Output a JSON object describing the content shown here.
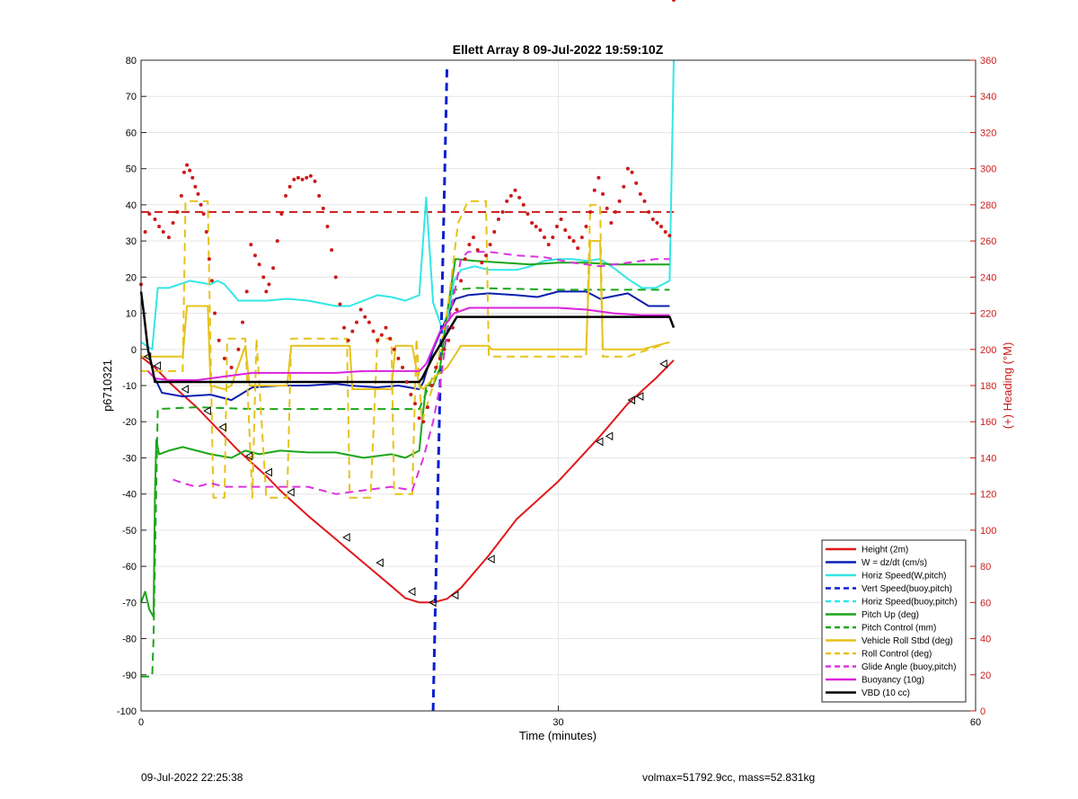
{
  "chart_data": {
    "type": "line",
    "title": "Ellett Array 8 09-Jul-2022 19:59:10Z",
    "xlabel": "Time (minutes)",
    "ylabel": "p6710321",
    "y2label": "(+) Heading (°M)",
    "xlim": [
      0,
      60
    ],
    "ylim": [
      -100,
      80
    ],
    "y2lim": [
      0,
      360
    ],
    "xticks": [
      "0",
      "30",
      "60"
    ],
    "yticks": [
      "-100",
      "-90",
      "-80",
      "-70",
      "-60",
      "-50",
      "-40",
      "-30",
      "-20",
      "-10",
      "0",
      "10",
      "20",
      "30",
      "40",
      "50",
      "60",
      "70",
      "80"
    ],
    "y2ticks": [
      "0",
      "20",
      "40",
      "60",
      "80",
      "100",
      "120",
      "140",
      "160",
      "180",
      "200",
      "220",
      "240",
      "260",
      "280",
      "300",
      "320",
      "340",
      "360"
    ],
    "grid": true,
    "legend_position": "bottom-right",
    "colors": {
      "height": "#e0191c",
      "w": "#0a1fb0",
      "horiz": "#33e6e6",
      "vert_buoy": "#0a1fd0",
      "pitch": "#1aa61a",
      "roll": "#e6c21a",
      "glide": "#dd33dd",
      "buoyancy": "#dd22dd",
      "vbd": "#000000",
      "heading": "#cc1a1a"
    },
    "series": [
      {
        "name": "Height (2m)",
        "color": "#e0191c",
        "dash": false,
        "width": 2,
        "x": [
          0,
          1,
          2,
          3,
          4,
          5,
          6,
          7,
          8,
          9,
          10,
          12,
          14,
          16,
          18,
          19,
          20,
          21,
          22,
          23,
          25,
          27,
          30,
          33,
          35,
          37,
          38.3
        ],
        "y": [
          -2,
          -5,
          -9,
          -12.5,
          -16,
          -20,
          -24,
          -28,
          -31.5,
          -35,
          -39,
          -46,
          -52.5,
          -59,
          -65.5,
          -68.8,
          -70,
          -70,
          -69,
          -66,
          -57,
          -47,
          -36.5,
          -24,
          -15,
          -8,
          -3
        ]
      },
      {
        "name": "W = dz/dt (cm/s)",
        "color": "#0a1fb0",
        "dash": false,
        "width": 2,
        "x": [
          1,
          1.5,
          3,
          5,
          6.5,
          8,
          10,
          12,
          14,
          15,
          17,
          18.5,
          20,
          20.3,
          21,
          22,
          22.6,
          23.5,
          25,
          27,
          28.5,
          30,
          32,
          33,
          35,
          36.5,
          38
        ],
        "y": [
          -8,
          -12,
          -13,
          -12.5,
          -14,
          -10.5,
          -10,
          -10,
          -9.5,
          -10,
          -10.5,
          -10,
          -11,
          -9,
          0,
          9,
          14,
          15,
          15.5,
          15,
          14.5,
          16,
          16,
          14,
          15.5,
          12,
          12
        ]
      },
      {
        "name": "Horiz Speed(W,pitch)",
        "color": "#33e6e6",
        "dash": false,
        "width": 2,
        "x": [
          0,
          0.8,
          1.2,
          2,
          3.5,
          5,
          5.5,
          6,
          7,
          9,
          10.5,
          12,
          14,
          15,
          16,
          17,
          18,
          19,
          20,
          20.5,
          21,
          21.8,
          22.5,
          23,
          24,
          25,
          27,
          28,
          29,
          30,
          31,
          32,
          33,
          34,
          35,
          36,
          37,
          38,
          38.2,
          38.3
        ],
        "y": [
          2,
          0,
          17,
          17,
          19,
          18,
          19,
          18,
          13.5,
          13.5,
          14,
          13.5,
          12,
          12,
          13.5,
          15,
          14.5,
          13.5,
          15,
          42,
          13,
          4,
          19,
          22,
          23,
          22,
          22,
          23,
          24.5,
          25,
          25,
          24.5,
          25,
          22.5,
          19.5,
          17,
          17,
          19,
          60,
          80
        ]
      },
      {
        "name": "Vert Speed(buoy,pitch)",
        "color": "#0a1fd0",
        "dash": true,
        "width": 3,
        "x": [
          21,
          21.5,
          22
        ],
        "y": [
          -100,
          -10,
          78
        ]
      },
      {
        "name": "Horiz Speed(buoy,pitch)",
        "color": "#33e6e6",
        "dash": true,
        "width": 2,
        "x": [],
        "y": []
      },
      {
        "name": "Pitch Up (deg)",
        "color": "#1aa61a",
        "dash": false,
        "width": 2,
        "x": [
          0,
          0.3,
          0.6,
          0.9,
          1,
          1.1,
          1.3,
          2,
          3,
          5,
          6.5,
          7.5,
          8.5,
          10,
          12,
          14,
          16,
          18,
          19,
          20,
          20.2,
          20.5,
          21,
          21.5,
          22,
          22.6,
          24,
          26,
          28,
          30,
          32,
          34,
          36,
          38
        ],
        "y": [
          -70,
          -67,
          -72,
          -74,
          -40,
          -25,
          -29,
          -28,
          -27,
          -29,
          -30,
          -28,
          -29,
          -28,
          -28.5,
          -28.5,
          -30,
          -29,
          -30,
          -28,
          -20,
          -10,
          -10,
          -5,
          10,
          25,
          24.5,
          24,
          23.5,
          24,
          24,
          23.5,
          23.5,
          23.5
        ]
      },
      {
        "name": "Pitch Control (mm)",
        "color": "#1aa61a",
        "dash": true,
        "width": 2,
        "x": [
          0,
          0.8,
          0.9,
          1.2,
          4,
          8,
          12,
          16,
          20,
          20.5,
          21.8,
          22.5,
          24,
          30,
          38
        ],
        "y": [
          -90.5,
          -90.5,
          -80,
          -16.5,
          -16,
          -16.5,
          -16.5,
          -16.5,
          -16.5,
          -12,
          0,
          16.5,
          17,
          16.5,
          16.5
        ]
      },
      {
        "name": "Vehicle Roll Stbd (deg)",
        "color": "#e6c21a",
        "dash": false,
        "width": 2,
        "x": [
          0,
          1,
          2,
          3,
          3.3,
          4.8,
          5,
          6,
          6.5,
          7.5,
          7.8,
          8.5,
          10.5,
          10.8,
          12,
          13.5,
          15,
          15.2,
          16,
          17,
          18,
          18.3,
          19.5,
          20,
          20.3,
          21,
          22,
          23,
          24.5,
          25,
          25.2,
          27,
          30,
          32,
          32.3,
          33,
          33.2,
          36,
          38
        ],
        "y": [
          -2,
          -2,
          -2,
          -2,
          12,
          12,
          -10,
          -11,
          -10,
          1,
          -10,
          -10,
          -10,
          1,
          1,
          1,
          1,
          -11,
          -11,
          -11,
          -11,
          1,
          1,
          -10,
          -11,
          -8,
          -5,
          1,
          1,
          1,
          0,
          0,
          0,
          0,
          30,
          30,
          0,
          0,
          2
        ]
      },
      {
        "name": "Roll Control (deg)",
        "color": "#e6c21a",
        "dash": true,
        "width": 2,
        "x": [
          0,
          1,
          2,
          3,
          3.2,
          4.8,
          5.2,
          6,
          6.2,
          7.5,
          8,
          8.3,
          9,
          10.5,
          10.8,
          12,
          14.8,
          15,
          16.5,
          17,
          18,
          18.2,
          19.5,
          19.8,
          20.2,
          21,
          22,
          22.8,
          23.5,
          24.8,
          25,
          26,
          30,
          32,
          32.3,
          33,
          33.2,
          35,
          38
        ],
        "y": [
          -6,
          -6,
          -6,
          -6,
          41,
          41,
          -41,
          -41,
          3,
          3,
          -41,
          3,
          -41,
          -41,
          3,
          3,
          3,
          -41,
          -41,
          3,
          3,
          -40,
          -40,
          3,
          -20,
          -10,
          10,
          35,
          41,
          41,
          -2,
          -2,
          -2,
          -2,
          40,
          40,
          -2,
          -2,
          2
        ]
      },
      {
        "name": "Glide Angle (buoy,pitch)",
        "color": "#dd33dd",
        "dash": true,
        "width": 2,
        "x": [
          2.3,
          3,
          4,
          5,
          6,
          8,
          10,
          12,
          14,
          16,
          18,
          19.5,
          20.3,
          21,
          21.5,
          22,
          22.5,
          23,
          23.5,
          25,
          27,
          29,
          31,
          33,
          35,
          37,
          38
        ],
        "y": [
          -36,
          -37,
          -38,
          -37,
          -38,
          -38,
          -38,
          -38,
          -40,
          -39,
          -38,
          -39,
          -30,
          -20,
          -10,
          5,
          15,
          25,
          27,
          27,
          26,
          25.5,
          24,
          23,
          24,
          25,
          25
        ]
      },
      {
        "name": "Buoyancy (10g)",
        "color": "#dd22dd",
        "dash": false,
        "width": 2,
        "x": [
          0.5,
          1,
          2,
          3,
          4,
          5,
          6,
          7,
          8,
          10,
          12,
          14,
          16,
          18,
          19,
          20,
          20.5,
          21.5,
          22.5,
          23.6,
          25,
          30,
          32,
          34,
          36,
          38
        ],
        "y": [
          -6,
          -8,
          -8.5,
          -8.5,
          -8.5,
          -8,
          -7.5,
          -7,
          -6.5,
          -6.5,
          -6.5,
          -6.5,
          -6,
          -6,
          -6,
          -6,
          -4,
          5,
          10,
          11.5,
          11.5,
          11.5,
          11,
          10,
          9.5,
          9.5
        ]
      },
      {
        "name": "VBD (10 cc)",
        "color": "#000000",
        "dash": false,
        "width": 2.5,
        "x": [
          0,
          0.2,
          0.5,
          0.8,
          1,
          1.5,
          2,
          4,
          8,
          12,
          16,
          20,
          20.2,
          21,
          22.7,
          25,
          30,
          35,
          38,
          38.3
        ],
        "y": [
          16,
          10,
          0,
          -5,
          -9,
          -9,
          -9,
          -9,
          -9,
          -9,
          -9,
          -9,
          -8,
          -2,
          9,
          9,
          9,
          9,
          9,
          6
        ]
      }
    ],
    "reference_lines": [
      {
        "color": "#cc1a1a",
        "dash": true,
        "y2": 276
      }
    ],
    "heading_points": {
      "color": "#cc1a1a",
      "x": [
        0,
        0.3,
        0.6,
        1,
        1.3,
        1.6,
        2,
        2.3,
        2.6,
        2.9,
        3.1,
        3.3,
        3.5,
        3.7,
        3.9,
        4.1,
        4.3,
        4.5,
        4.7,
        4.9,
        5.1,
        5.3,
        5.6,
        6,
        6.5,
        7,
        7.3,
        7.6,
        7.9,
        8.2,
        8.5,
        8.8,
        9,
        9.2,
        9.5,
        9.8,
        10.1,
        10.4,
        10.7,
        11,
        11.3,
        11.6,
        11.9,
        12.2,
        12.5,
        12.8,
        13.1,
        13.4,
        13.7,
        14,
        14.3,
        14.6,
        14.9,
        15.2,
        15.5,
        15.8,
        16.1,
        16.4,
        16.7,
        17,
        17.3,
        17.6,
        17.9,
        18.2,
        18.5,
        18.8,
        19.1,
        19.4,
        19.7,
        20,
        20.3,
        20.6,
        20.9,
        21.2,
        21.5,
        21.8,
        22.1,
        22.4,
        22.7,
        23,
        23.3,
        23.6,
        23.9,
        24.2,
        24.5,
        24.8,
        25.1,
        25.4,
        25.7,
        26,
        26.3,
        26.6,
        26.9,
        27.2,
        27.5,
        27.8,
        28.1,
        28.4,
        28.7,
        29,
        29.3,
        29.6,
        29.9,
        30.2,
        30.5,
        30.8,
        31.1,
        31.4,
        31.7,
        32,
        32.3,
        32.6,
        32.9,
        33.2,
        33.5,
        33.8,
        34.1,
        34.4,
        34.7,
        35,
        35.3,
        35.6,
        35.9,
        36.2,
        36.5,
        36.8,
        37.1,
        37.4,
        37.7,
        38,
        38.3
      ],
      "y2": [
        236,
        265,
        275,
        272,
        268,
        265,
        262,
        270,
        276,
        285,
        298,
        302,
        299,
        295,
        290,
        286,
        280,
        275,
        265,
        250,
        238,
        220,
        205,
        195,
        190,
        200,
        215,
        232,
        258,
        252,
        247,
        240,
        232,
        236,
        245,
        260,
        275,
        285,
        290,
        294,
        295,
        294,
        295,
        296,
        293,
        285,
        278,
        268,
        255,
        240,
        225,
        212,
        205,
        210,
        215,
        222,
        218,
        215,
        210,
        205,
        208,
        212,
        206,
        200,
        195,
        190,
        182,
        175,
        170,
        162,
        160,
        168,
        180,
        190,
        195,
        200,
        205,
        212,
        222,
        238,
        250,
        258,
        262,
        255,
        248,
        252,
        258,
        265,
        272,
        276,
        282,
        285,
        288,
        284,
        280,
        275,
        270,
        268,
        266,
        262,
        258,
        262,
        268,
        272,
        266,
        262,
        260,
        256,
        262,
        268,
        276,
        288,
        295,
        286,
        278,
        270,
        276,
        282,
        290,
        300,
        298,
        292,
        286,
        282,
        276,
        272,
        270,
        268,
        265,
        263
      ]
    },
    "direction_markers": {
      "color": "#000000",
      "x": [
        0.5,
        1.2,
        3.2,
        4.8,
        5.9,
        7.8,
        9.2,
        10.8,
        14.8,
        17.2,
        19.5,
        21,
        22.6,
        25.2,
        33,
        33.7,
        35.3,
        35.9,
        37.6
      ],
      "y": [
        -2,
        -4.5,
        -11,
        -17,
        -21.5,
        -29.5,
        -34,
        -39.5,
        -52,
        -59,
        -67,
        -70,
        -68,
        -58,
        -25.5,
        -24,
        -14,
        -13,
        -4
      ]
    },
    "legend": [
      {
        "label": "Height (2m)",
        "color": "#e0191c",
        "dash": false
      },
      {
        "label": "W = dz/dt (cm/s)",
        "color": "#0a1fb0",
        "dash": false
      },
      {
        "label": "Horiz Speed(W,pitch)",
        "color": "#33e6e6",
        "dash": false
      },
      {
        "label": "Vert Speed(buoy,pitch)",
        "color": "#0a1fd0",
        "dash": true
      },
      {
        "label": "Horiz Speed(buoy,pitch)",
        "color": "#33e6e6",
        "dash": true
      },
      {
        "label": "Pitch Up (deg)",
        "color": "#1aa61a",
        "dash": false
      },
      {
        "label": "Pitch Control (mm)",
        "color": "#1aa61a",
        "dash": true
      },
      {
        "label": "Vehicle Roll Stbd (deg)",
        "color": "#e6c21a",
        "dash": false
      },
      {
        "label": "Roll Control (deg)",
        "color": "#e6c21a",
        "dash": true
      },
      {
        "label": "Glide Angle (buoy,pitch)",
        "color": "#dd33dd",
        "dash": true
      },
      {
        "label": "Buoyancy (10g)",
        "color": "#dd22dd",
        "dash": false
      },
      {
        "label": "VBD (10 cc)",
        "color": "#000000",
        "dash": false
      }
    ]
  },
  "footer": {
    "timestamp": "09-Jul-2022 22:25:38",
    "params": "volmax=51792.9cc, mass=52.831kg"
  }
}
